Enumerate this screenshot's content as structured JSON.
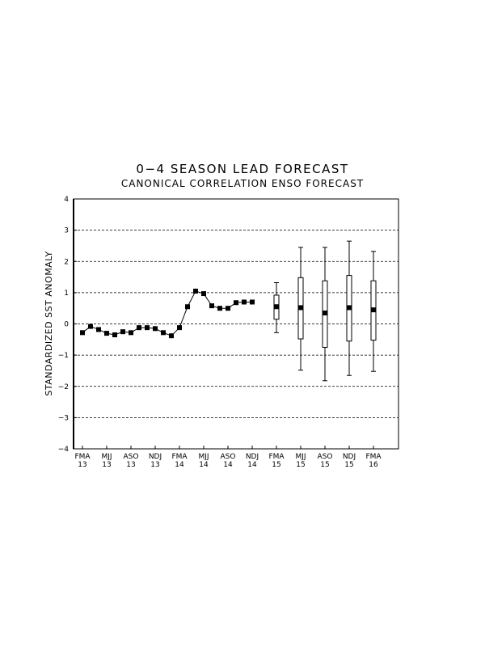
{
  "chart_data": {
    "type": "line",
    "title": "0−4 SEASON LEAD FORECAST",
    "subtitle": "CANONICAL CORRELATION ENSO FORECAST",
    "ylabel": "STANDARDIZED SST ANOMALY",
    "ylim": [
      -4,
      4
    ],
    "yticks": [
      "4",
      "3",
      "2",
      "1",
      "0",
      "−1",
      "−2",
      "−3",
      "−4"
    ],
    "grid": "dashed-horizontal",
    "xtick_labels": [
      {
        "season": "FMA",
        "year": "13"
      },
      {
        "season": "MJJ",
        "year": "13"
      },
      {
        "season": "ASO",
        "year": "13"
      },
      {
        "season": "NDJ",
        "year": "13"
      },
      {
        "season": "FMA",
        "year": "14"
      },
      {
        "season": "MJJ",
        "year": "14"
      },
      {
        "season": "ASO",
        "year": "14"
      },
      {
        "season": "NDJ",
        "year": "14"
      },
      {
        "season": "FMA",
        "year": "15"
      },
      {
        "season": "MJJ",
        "year": "15"
      },
      {
        "season": "ASO",
        "year": "15"
      },
      {
        "season": "NDJ",
        "year": "15"
      },
      {
        "season": "FMA",
        "year": "16"
      }
    ],
    "observed": [
      -0.28,
      -0.08,
      -0.18,
      -0.3,
      -0.35,
      -0.25,
      -0.28,
      -0.12,
      -0.12,
      -0.15,
      -0.28,
      -0.38,
      -0.12,
      0.55,
      1.05,
      0.97,
      0.58,
      0.5,
      0.5,
      0.68,
      0.7,
      0.7
    ],
    "forecast": [
      {
        "season_index": 8,
        "median": 0.55,
        "box_low": 0.15,
        "box_high": 0.92,
        "whisker_low": -0.28,
        "whisker_high": 1.32
      },
      {
        "season_index": 9,
        "median": 0.52,
        "box_low": -0.48,
        "box_high": 1.48,
        "whisker_low": -1.48,
        "whisker_high": 2.45
      },
      {
        "season_index": 10,
        "median": 0.35,
        "box_low": -0.75,
        "box_high": 1.38,
        "whisker_low": -1.82,
        "whisker_high": 2.45
      },
      {
        "season_index": 11,
        "median": 0.52,
        "box_low": -0.55,
        "box_high": 1.55,
        "whisker_low": -1.65,
        "whisker_high": 2.65
      },
      {
        "season_index": 12,
        "median": 0.45,
        "box_low": -0.52,
        "box_high": 1.38,
        "whisker_low": -1.52,
        "whisker_high": 2.32
      }
    ]
  }
}
